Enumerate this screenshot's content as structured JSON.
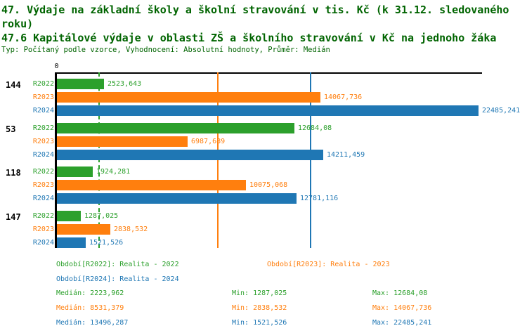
{
  "header": {
    "title_line1": "47. Výdaje na základní školy a školní stravování v tis. Kč (k 31.12. sledovaného",
    "title_line2": "roku)",
    "subtitle": "47.6 Kapitálové výdaje v oblasti ZŠ a školního stravování v Kč na jednoho žáka",
    "meta": "Typ: Počítaný podle vzorce, Vyhodnocení: Absolutní hodnoty, Průměr: Medián"
  },
  "colors": {
    "r2022": "#2ca02c",
    "r2023": "#ff7f0e",
    "r2024": "#1f77b4",
    "title": "#006400",
    "axis": "#000000"
  },
  "chart_data": {
    "type": "bar",
    "orientation": "horizontal",
    "axis_origin_label": "0",
    "xlim": [
      0,
      22485.241
    ],
    "grid": "median-lines-per-series",
    "legend_position": "bottom",
    "categories": [
      "144",
      "53",
      "118",
      "147"
    ],
    "series": [
      {
        "name": "R2022",
        "color_key": "r2022",
        "line_style": "dashed",
        "values": [
          2523.643,
          12684.08,
          1924.281,
          1287.025
        ],
        "value_labels": [
          "2523,643",
          "12684,08",
          "1924,281",
          "1287,025"
        ],
        "median": 2223.962,
        "min": 1287.025,
        "max": 12684.08
      },
      {
        "name": "R2023",
        "color_key": "r2023",
        "line_style": "solid",
        "values": [
          14067.736,
          6987.689,
          10075.068,
          2838.532
        ],
        "value_labels": [
          "14067,736",
          "6987,689",
          "10075,068",
          "2838,532"
        ],
        "median": 8531.379,
        "min": 2838.532,
        "max": 14067.736
      },
      {
        "name": "R2024",
        "color_key": "r2024",
        "line_style": "solid",
        "values": [
          22485.241,
          14211.459,
          12781.116,
          1521.526
        ],
        "value_labels": [
          "22485,241",
          "14211,459",
          "12781,116",
          "1521,526"
        ],
        "median": 13496.287,
        "min": 1521.526,
        "max": 22485.241
      }
    ]
  },
  "legend": {
    "items": [
      {
        "text": "Období[R2022]: Realita - 2022",
        "color_key": "r2022"
      },
      {
        "text": "Období[R2023]: Realita - 2023",
        "color_key": "r2023"
      },
      {
        "text": "Období[R2024]: Realita - 2024",
        "color_key": "r2024"
      }
    ]
  },
  "stats": {
    "rows": [
      {
        "color_key": "r2022",
        "median": "Medián: 2223,962",
        "min": "Min: 1287,025",
        "max": "Max: 12684,08"
      },
      {
        "color_key": "r2023",
        "median": "Medián: 8531,379",
        "min": "Min: 2838,532",
        "max": "Max: 14067,736"
      },
      {
        "color_key": "r2024",
        "median": "Medián: 13496,287",
        "min": "Min: 1521,526",
        "max": "Max: 22485,241"
      }
    ]
  }
}
